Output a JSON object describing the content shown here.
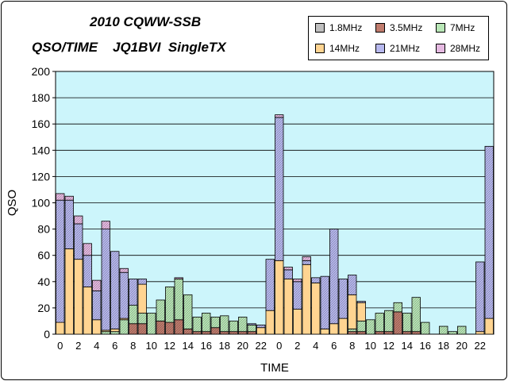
{
  "colors": {
    "plot_background": "#ccf5fb",
    "band_1_8": "#bfbfbf",
    "band_3_5": "#c07c6e",
    "band_7": "#b9e7b7",
    "band_14": "#ffd491",
    "band_21": "#b7b8ee",
    "band_28": "#e5b9e1"
  },
  "chart_data": {
    "type": "bar",
    "stacked": true,
    "title": "2010 CQWW-SSB",
    "subtitle": "QSO/TIME    JQ1BVI  SingleTX",
    "xlabel": "TIME",
    "ylabel": "QSO",
    "ylim": [
      0,
      200
    ],
    "yticks": [
      0,
      20,
      40,
      60,
      80,
      100,
      120,
      140,
      160,
      180,
      200
    ],
    "grid": true,
    "legend_position": "top-right",
    "categories": [
      "0",
      "1",
      "2",
      "3",
      "4",
      "5",
      "6",
      "7",
      "8",
      "9",
      "10",
      "11",
      "12",
      "13",
      "14",
      "15",
      "16",
      "17",
      "18",
      "19",
      "20",
      "21",
      "22",
      "23",
      "0",
      "1",
      "2",
      "3",
      "4",
      "5",
      "6",
      "7",
      "8",
      "9",
      "10",
      "11",
      "12",
      "13",
      "14",
      "15",
      "16",
      "17",
      "18",
      "19",
      "20",
      "21",
      "22",
      "23"
    ],
    "tick_labels": [
      "0",
      "2",
      "4",
      "6",
      "8",
      "10",
      "12",
      "14",
      "16",
      "18",
      "20",
      "22",
      "0",
      "2",
      "4",
      "6",
      "8",
      "10",
      "12",
      "14",
      "16",
      "18",
      "20",
      "22"
    ],
    "series": [
      {
        "name": "1.8MHz",
        "values": [
          0,
          0,
          0,
          0,
          0,
          0,
          0,
          0,
          0,
          0,
          0,
          0,
          0,
          0,
          0,
          0,
          0,
          0,
          0,
          0,
          0,
          0,
          0,
          0,
          0,
          0,
          0,
          0,
          0,
          0,
          0,
          0,
          0,
          0,
          0,
          0,
          0,
          0,
          0,
          0,
          0,
          0,
          0,
          0,
          0,
          0,
          0,
          0
        ]
      },
      {
        "name": "3.5MHz",
        "values": [
          0,
          0,
          0,
          0,
          0,
          0,
          0,
          0,
          8,
          8,
          0,
          10,
          9,
          11,
          4,
          2,
          2,
          5,
          2,
          2,
          2,
          2,
          0,
          0,
          0,
          0,
          0,
          0,
          0,
          0,
          0,
          0,
          2,
          2,
          0,
          2,
          2,
          17,
          2,
          2,
          0,
          0,
          0,
          0,
          0,
          0,
          0,
          0
        ]
      },
      {
        "name": "7MHz",
        "values": [
          0,
          0,
          0,
          0,
          0,
          2,
          2,
          11,
          14,
          8,
          16,
          16,
          27,
          31,
          26,
          11,
          14,
          8,
          12,
          8,
          11,
          5,
          0,
          0,
          0,
          0,
          0,
          0,
          0,
          0,
          0,
          0,
          2,
          8,
          11,
          14,
          16,
          7,
          14,
          26,
          9,
          0,
          6,
          2,
          6,
          0,
          0,
          0
        ]
      },
      {
        "name": "14MHz",
        "values": [
          9,
          65,
          57,
          36,
          11,
          1,
          2,
          1,
          0,
          22,
          0,
          0,
          0,
          0,
          0,
          0,
          0,
          0,
          0,
          0,
          0,
          0,
          5,
          18,
          56,
          42,
          19,
          53,
          39,
          4,
          8,
          12,
          26,
          14,
          0,
          0,
          0,
          0,
          0,
          0,
          0,
          0,
          0,
          0,
          0,
          0,
          2,
          12
        ]
      },
      {
        "name": "21MHz",
        "values": [
          93,
          37,
          27,
          24,
          22,
          77,
          59,
          35,
          20,
          4,
          0,
          0,
          0,
          0,
          0,
          0,
          0,
          0,
          0,
          0,
          0,
          1,
          2,
          39,
          109,
          7,
          21,
          3,
          4,
          40,
          72,
          30,
          15,
          1,
          0,
          0,
          0,
          0,
          0,
          0,
          0,
          0,
          0,
          0,
          0,
          0,
          53,
          131
        ]
      },
      {
        "name": "28MHz",
        "values": [
          5,
          3,
          6,
          9,
          8,
          6,
          0,
          3,
          0,
          0,
          0,
          0,
          0,
          1,
          0,
          0,
          0,
          0,
          0,
          0,
          0,
          0,
          0,
          0,
          2,
          2,
          2,
          3,
          0,
          0,
          0,
          0,
          0,
          0,
          0,
          0,
          0,
          0,
          0,
          0,
          0,
          0,
          0,
          0,
          0,
          0,
          0,
          0
        ]
      }
    ]
  }
}
